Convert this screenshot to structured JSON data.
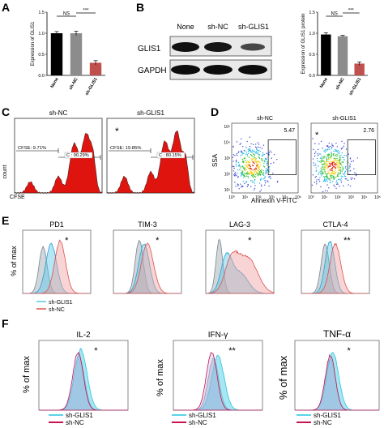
{
  "panels": {
    "A": {
      "letter": "A",
      "chart_data": {
        "type": "bar",
        "categories": [
          "None",
          "sh-NC",
          "sh-GLIS1"
        ],
        "values": [
          1.0,
          1.0,
          0.3
        ],
        "errors": [
          0.04,
          0.05,
          0.05
        ],
        "ylabel": "Expression of GLIS1",
        "ylim": [
          0,
          1.5
        ],
        "yticks": [
          "0.0",
          "0.5",
          "1.0",
          "1.5"
        ],
        "bar_colors": [
          "#000000",
          "#8c8c8c",
          "#c0504d"
        ],
        "significance": [
          {
            "pair": [
              0,
              1
            ],
            "label": "NS"
          },
          {
            "pair": [
              1,
              2
            ],
            "label": "***"
          }
        ]
      }
    },
    "B": {
      "letter": "B",
      "blot": {
        "columns": [
          "None",
          "sh-NC",
          "sh-GLIS1"
        ],
        "rows": [
          "GLIS1",
          "GAPDH"
        ]
      },
      "chart_data": {
        "type": "bar",
        "categories": [
          "None",
          "sh-NC",
          "sh-GLIS1"
        ],
        "values": [
          0.97,
          0.93,
          0.28
        ],
        "errors": [
          0.04,
          0.02,
          0.04
        ],
        "ylabel": "Expression of GLIS1 protein",
        "ylim": [
          0,
          1.5
        ],
        "yticks": [
          "0.0",
          "0.5",
          "1.0",
          "1.5"
        ],
        "bar_colors": [
          "#000000",
          "#8c8c8c",
          "#c0504d"
        ],
        "significance": [
          {
            "pair": [
              0,
              1
            ],
            "label": "NS"
          },
          {
            "pair": [
              1,
              2
            ],
            "label": "***"
          }
        ]
      }
    },
    "C": {
      "letter": "C",
      "ylabel": "count",
      "xlabel": "CFSE",
      "plots": [
        {
          "title": "sh-NC",
          "cfse_label": "CFSE: 9.71%",
          "c_label": "C : 90.29%",
          "star": ""
        },
        {
          "title": "sh-GLIS1",
          "cfse_label": "CFSE: 19.85%",
          "c_label": "C : 80.15%",
          "star": "*"
        }
      ]
    },
    "D": {
      "letter": "D",
      "ylabel": "SSA",
      "xlabel": "Annexin V-FITC",
      "xticks": [
        "10⁰",
        "10¹",
        "10²",
        "10³",
        "10⁴",
        "10⁵"
      ],
      "yticks": [
        "10⁵",
        "10⁴",
        "10³",
        "10²",
        "10¹"
      ],
      "plots": [
        {
          "title": "sh-NC",
          "percent": "5.47",
          "star": ""
        },
        {
          "title": "sh-GLIS1",
          "percent": "2.76",
          "star": "*"
        }
      ]
    },
    "E": {
      "letter": "E",
      "ylabel": "% of max",
      "legend": [
        {
          "name": "sh-GLIS1",
          "color": "#5bc8e8"
        },
        {
          "name": "sh-NC",
          "color": "#d9534f"
        }
      ],
      "plots": [
        {
          "title": "PD1",
          "star": "*"
        },
        {
          "title": "TIM-3",
          "star": "*"
        },
        {
          "title": "LAG-3",
          "star": "*"
        },
        {
          "title": "CTLA-4",
          "star": "**"
        }
      ]
    },
    "F": {
      "letter": "F",
      "ylabel": "% of max",
      "legend": [
        {
          "name": "sh-GLIS1",
          "color": "#5bd3e8"
        },
        {
          "name": "sh-NC",
          "color": "#c9134f"
        }
      ],
      "plots": [
        {
          "title": "IL-2",
          "star": "*"
        },
        {
          "title": "IFN-γ",
          "star": "**"
        },
        {
          "title": "TNF-α",
          "star": "*"
        }
      ]
    }
  }
}
